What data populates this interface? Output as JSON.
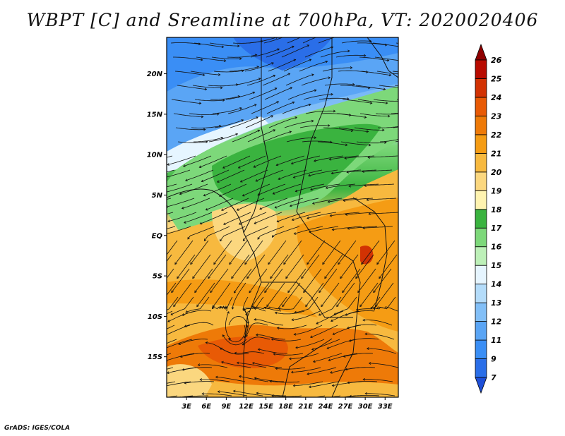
{
  "title": "WBPT [C] and Sreamline at 700hPa, VT: 2020020406",
  "credit": "GrADS: IGES/COLA",
  "map": {
    "lat_labels": [
      "20N",
      "15N",
      "10N",
      "5N",
      "EQ",
      "5S",
      "10S",
      "15S"
    ],
    "lon_labels": [
      "3E",
      "6E",
      "9E",
      "12E",
      "15E",
      "18E",
      "21E",
      "24E",
      "27E",
      "30E",
      "33E"
    ],
    "lat_range": [
      -20,
      24.5
    ],
    "lon_range": [
      0,
      35
    ]
  },
  "colorbar": {
    "labels": [
      "7",
      "9",
      "11",
      "12",
      "13",
      "14",
      "15",
      "16",
      "17",
      "18",
      "19",
      "20",
      "21",
      "22",
      "23",
      "24",
      "25",
      "26"
    ],
    "colors": [
      "#1e4fd8",
      "#2a6ee8",
      "#3a8ef5",
      "#5aa5f5",
      "#82bff7",
      "#b4dcfa",
      "#e6f5ff",
      "#bdf0b8",
      "#7dd87a",
      "#3ab33f",
      "#fff3b0",
      "#fbd77f",
      "#f7b93f",
      "#f59c14",
      "#ee7a08",
      "#e85a05",
      "#d23203",
      "#b80b00",
      "#8f0000"
    ]
  }
}
